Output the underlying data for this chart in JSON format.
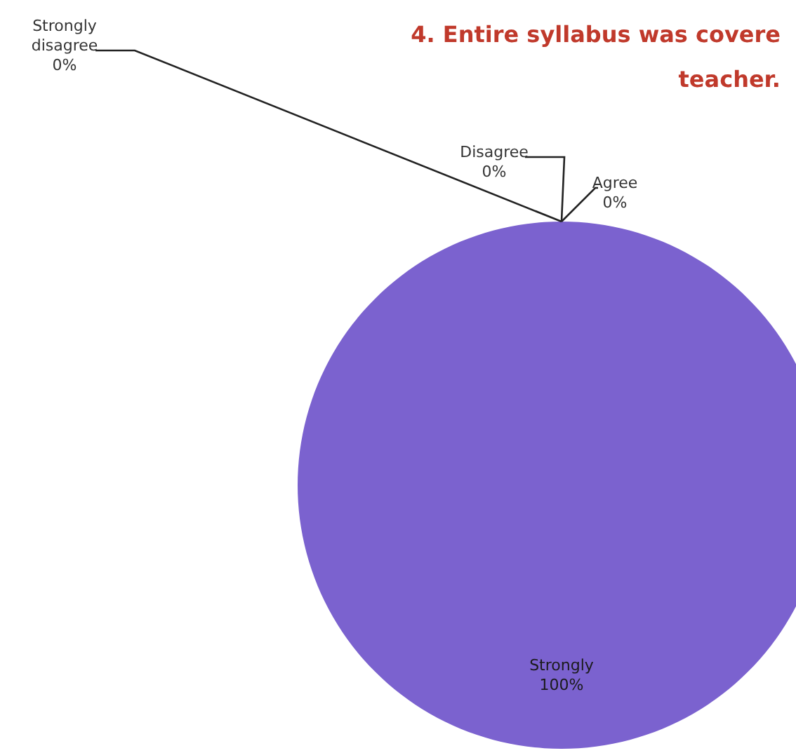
{
  "chart_data": {
    "type": "pie",
    "title": "4. Entire syllabus was covere\nteacher.",
    "categories": [
      "Strongly disagree",
      "Disagree",
      "Agree",
      "Strongly"
    ],
    "values": [
      0,
      0,
      0,
      100
    ],
    "value_labels": [
      "0%",
      "0%",
      "0%",
      "100%"
    ],
    "colors": [
      "#4f81bd",
      "#c0504d",
      "#9bbb59",
      "#7b62cf"
    ],
    "legend": false
  }
}
